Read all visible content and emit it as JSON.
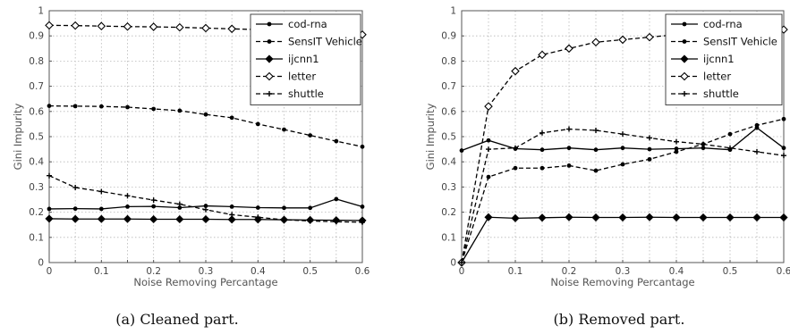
{
  "chart_data": [
    {
      "type": "line",
      "caption": "(a) Cleaned part.",
      "xlabel": "Noise Removing Percantage",
      "ylabel": "Gini Impurity",
      "xlim": [
        0,
        0.6
      ],
      "ylim": [
        0,
        1
      ],
      "xticks": [
        "0",
        "0.1",
        "0.2",
        "0.3",
        "0.4",
        "0.5",
        "0.6"
      ],
      "yticks": [
        "0",
        "0.1",
        "0.2",
        "0.3",
        "0.4",
        "0.5",
        "0.6",
        "0.7",
        "0.8",
        "0.9",
        "1"
      ],
      "grid": true,
      "legend_position": "top-right",
      "x": [
        0,
        0.05,
        0.1,
        0.15,
        0.2,
        0.25,
        0.3,
        0.35,
        0.4,
        0.45,
        0.5,
        0.55,
        0.6
      ],
      "series": [
        {
          "name": "cod-rna",
          "style": "solid",
          "marker": "dot",
          "values": [
            0.213,
            0.214,
            0.213,
            0.222,
            0.223,
            0.218,
            0.225,
            0.222,
            0.218,
            0.217,
            0.217,
            0.252,
            0.222
          ]
        },
        {
          "name": "SensIT Vehicle",
          "style": "dashed",
          "marker": "dot",
          "values": [
            0.622,
            0.621,
            0.62,
            0.617,
            0.61,
            0.603,
            0.588,
            0.575,
            0.55,
            0.528,
            0.505,
            0.482,
            0.46
          ]
        },
        {
          "name": "ijcnn1",
          "style": "solid",
          "marker": "diamond-filled",
          "values": [
            0.174,
            0.173,
            0.173,
            0.173,
            0.172,
            0.172,
            0.172,
            0.171,
            0.171,
            0.17,
            0.169,
            0.168,
            0.167
          ]
        },
        {
          "name": "letter",
          "style": "dashed",
          "marker": "diamond-open",
          "values": [
            0.942,
            0.941,
            0.939,
            0.937,
            0.936,
            0.934,
            0.931,
            0.928,
            0.925,
            0.921,
            0.915,
            0.91,
            0.905
          ]
        },
        {
          "name": "shuttle",
          "style": "dashed",
          "marker": "plus",
          "values": [
            0.345,
            0.298,
            0.282,
            0.265,
            0.248,
            0.232,
            0.21,
            0.19,
            0.18,
            0.17,
            0.165,
            0.162,
            0.16
          ]
        }
      ]
    },
    {
      "type": "line",
      "caption": "(b) Removed part.",
      "xlabel": "Noise Removing Percantage",
      "ylabel": "Gini Impurity",
      "xlim": [
        0,
        0.6
      ],
      "ylim": [
        0,
        1
      ],
      "xticks": [
        "0",
        "0.1",
        "0.2",
        "0.3",
        "0.4",
        "0.5",
        "0.6"
      ],
      "yticks": [
        "0",
        "0.1",
        "0.2",
        "0.3",
        "0.4",
        "0.5",
        "0.6",
        "0.7",
        "0.8",
        "0.9",
        "1"
      ],
      "grid": true,
      "legend_position": "top-right",
      "x": [
        0,
        0.05,
        0.1,
        0.15,
        0.2,
        0.25,
        0.3,
        0.35,
        0.4,
        0.45,
        0.5,
        0.55,
        0.6
      ],
      "series": [
        {
          "name": "cod-rna",
          "style": "solid",
          "marker": "dot",
          "values": [
            0.445,
            0.485,
            0.452,
            0.448,
            0.455,
            0.448,
            0.455,
            0.45,
            0.452,
            0.455,
            0.448,
            0.535,
            0.455
          ]
        },
        {
          "name": "SensIT Vehicle",
          "style": "dashed",
          "marker": "dot",
          "values": [
            0.0,
            0.34,
            0.375,
            0.375,
            0.385,
            0.365,
            0.39,
            0.41,
            0.44,
            0.47,
            0.51,
            0.545,
            0.57
          ]
        },
        {
          "name": "ijcnn1",
          "style": "solid",
          "marker": "diamond-filled",
          "values": [
            0.0,
            0.18,
            0.176,
            0.178,
            0.18,
            0.179,
            0.179,
            0.18,
            0.179,
            0.179,
            0.179,
            0.179,
            0.179
          ]
        },
        {
          "name": "letter",
          "style": "dashed",
          "marker": "diamond-open",
          "values": [
            0.0,
            0.62,
            0.76,
            0.825,
            0.85,
            0.875,
            0.885,
            0.895,
            0.905,
            0.91,
            0.915,
            0.92,
            0.925
          ]
        },
        {
          "name": "shuttle",
          "style": "dashed",
          "marker": "plus",
          "values": [
            0.0,
            0.45,
            0.455,
            0.515,
            0.53,
            0.525,
            0.51,
            0.495,
            0.48,
            0.47,
            0.455,
            0.44,
            0.425
          ]
        }
      ]
    }
  ]
}
